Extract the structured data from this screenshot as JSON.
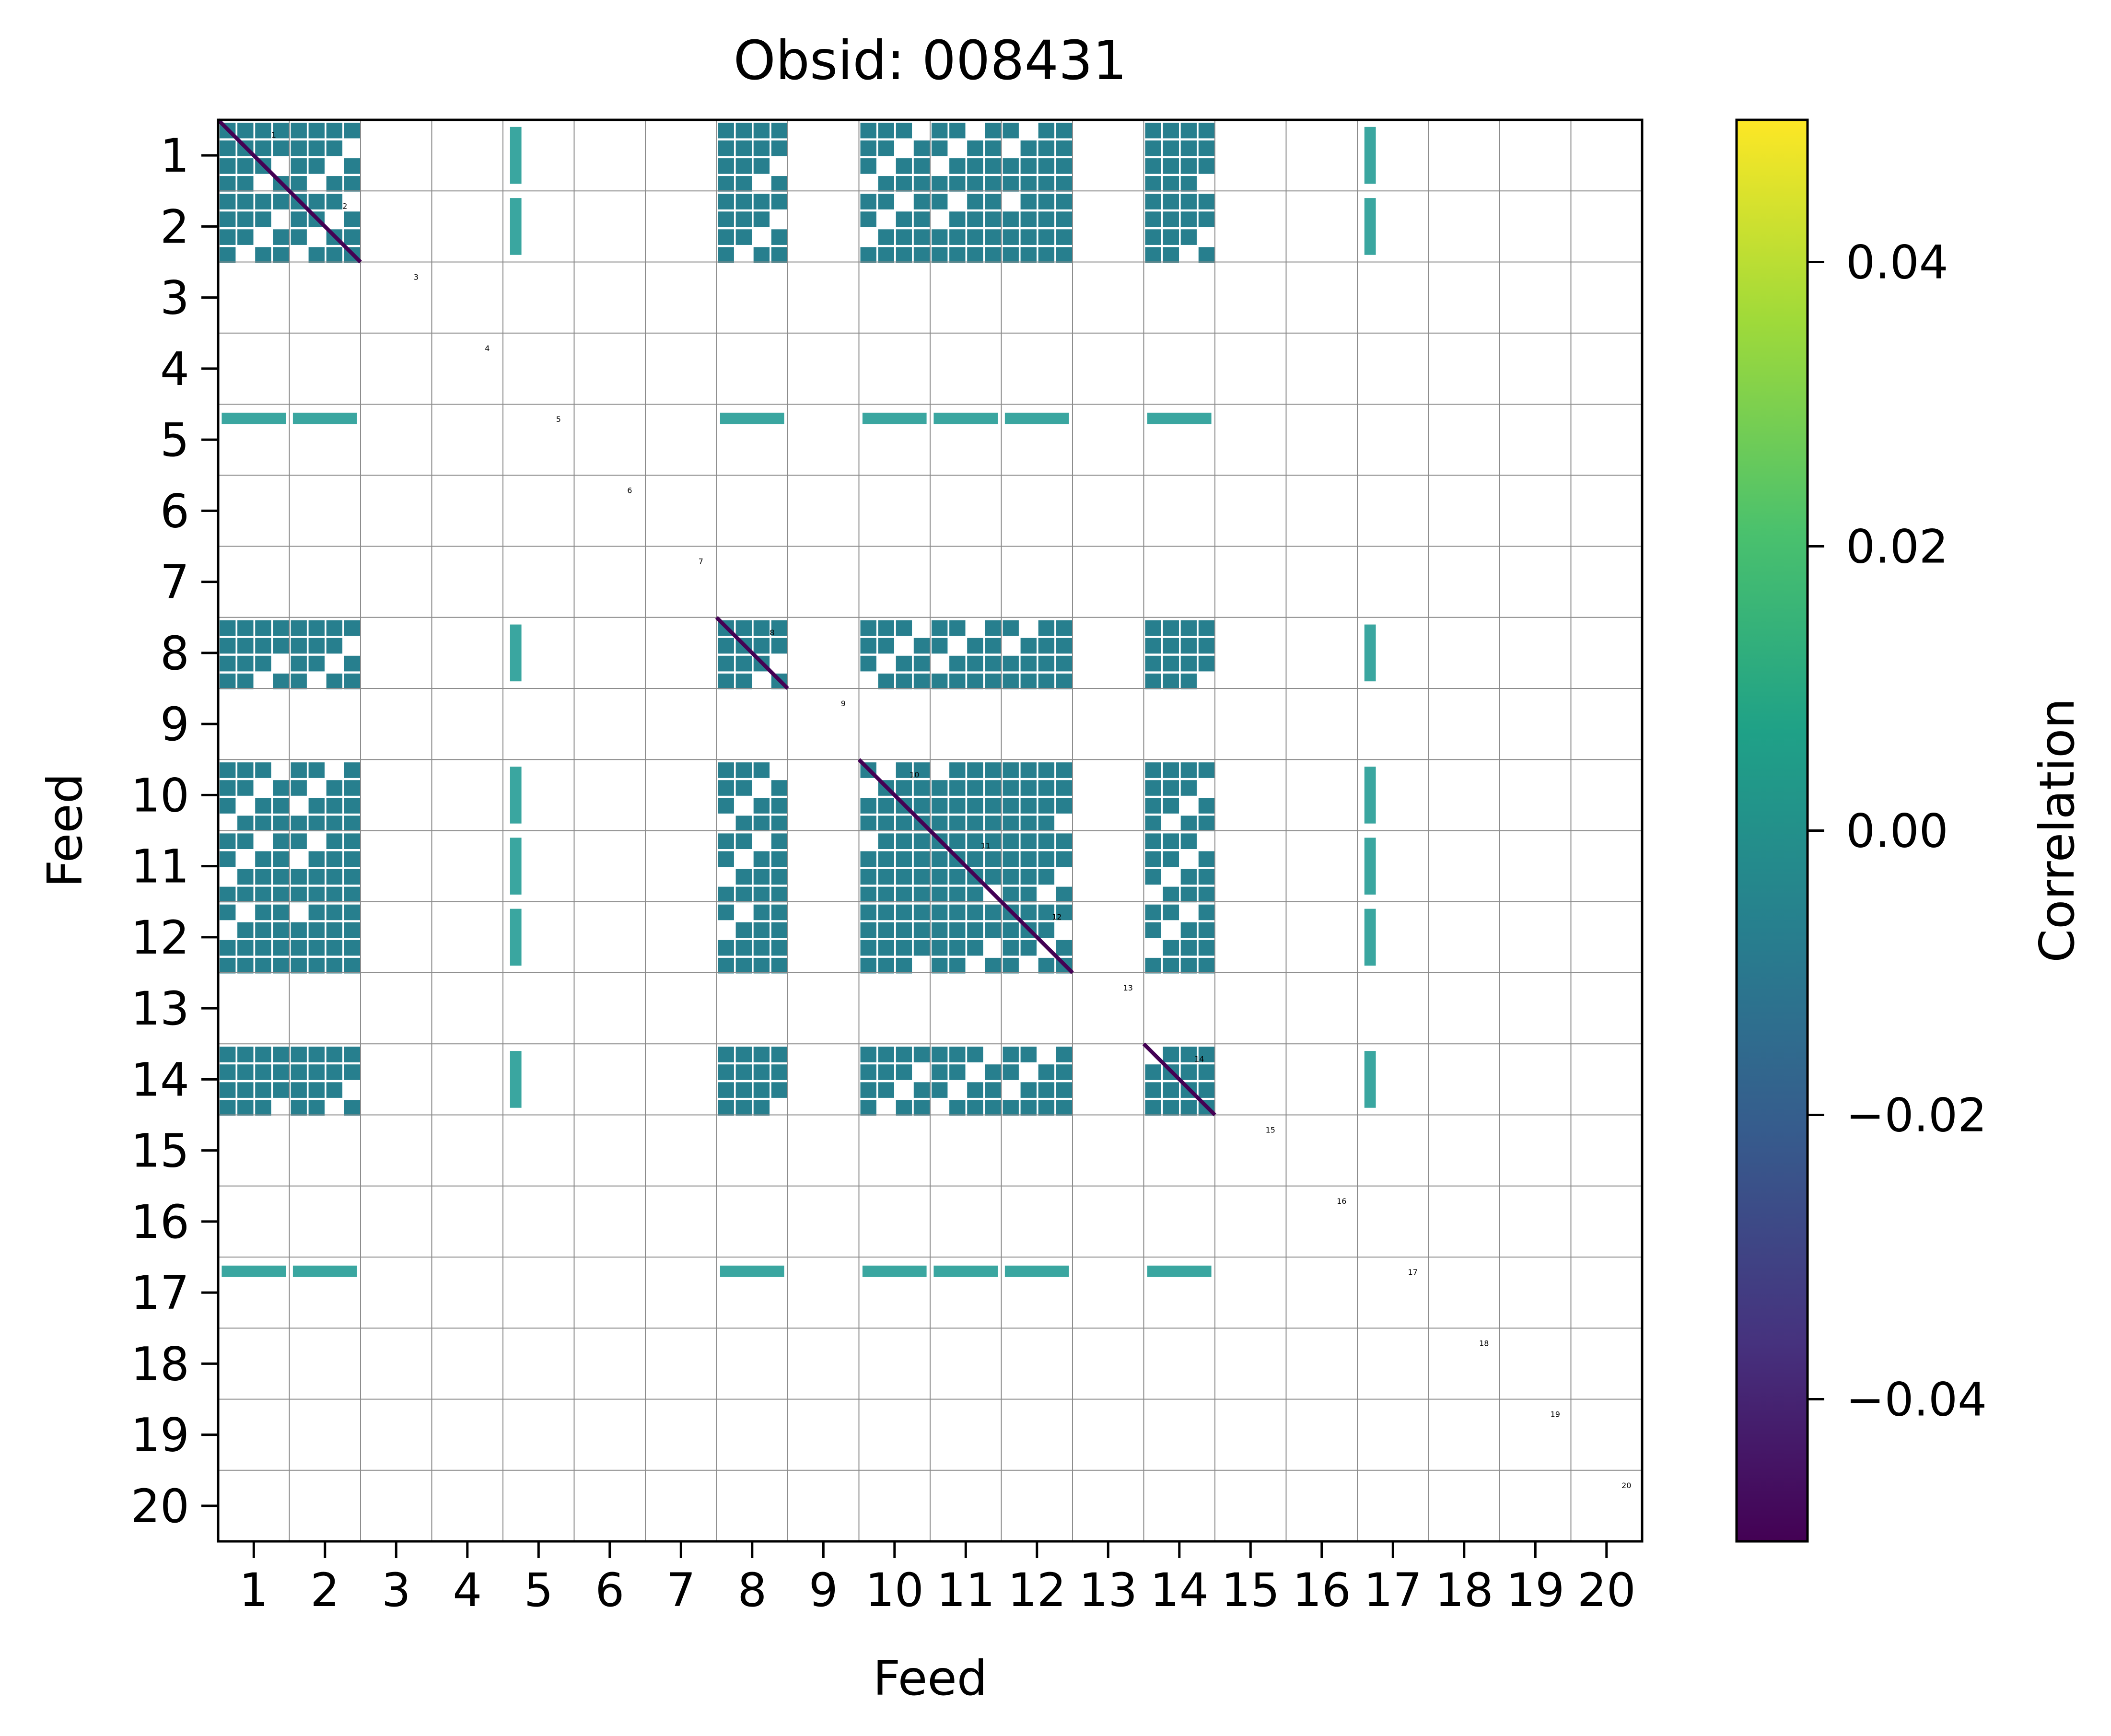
{
  "chart_data": {
    "type": "heatmap",
    "title": "Obsid: 008431",
    "xlabel": "Feed",
    "ylabel": "Feed",
    "tick_labels": [
      "1",
      "2",
      "3",
      "4",
      "5",
      "6",
      "7",
      "8",
      "9",
      "10",
      "11",
      "12",
      "13",
      "14",
      "15",
      "16",
      "17",
      "18",
      "19",
      "20"
    ],
    "sidebands_per_feed": 4,
    "active_feeds": [
      1,
      2,
      8,
      10,
      11,
      12,
      14
    ],
    "sparse_feeds": [
      5,
      17
    ],
    "diagonal_value": -0.045,
    "block_value": 0.0,
    "colorbar": {
      "label": "Correlation",
      "range": [
        -0.05,
        0.05
      ],
      "ticks": [
        0.04,
        0.02,
        0.0,
        -0.02,
        -0.04
      ],
      "tick_labels": [
        "0.04",
        "0.02",
        "0.00",
        "−0.02",
        "−0.04"
      ],
      "colormap": "viridis"
    },
    "grid": true
  },
  "colors": {
    "block": "#21918c",
    "diagonal": "#46307e",
    "sparse": "#3aa6a0",
    "grid": "#8c8c8c",
    "viridis": [
      "#fde725",
      "#a0da39",
      "#4ac16d",
      "#1fa187",
      "#277f8e",
      "#365c8d",
      "#46327e",
      "#440154"
    ]
  }
}
